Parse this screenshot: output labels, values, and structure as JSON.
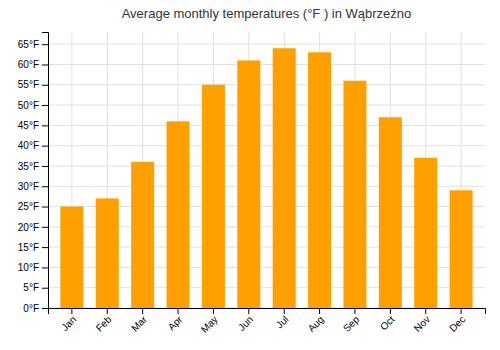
{
  "chart_data": {
    "type": "bar",
    "title": "Average monthly temperatures (°F ) in Wąbrzeźno",
    "categories": [
      "Jan",
      "Feb",
      "Mar",
      "Apr",
      "May",
      "Jun",
      "Jul",
      "Aug",
      "Sep",
      "Oct",
      "Nov",
      "Dec"
    ],
    "values": [
      25,
      27,
      36,
      46,
      55,
      61,
      64,
      63,
      56,
      47,
      37,
      29
    ],
    "color": "#FFA000",
    "ylim": [
      0,
      68
    ],
    "yticks": [
      {
        "value": 0,
        "label": "0°F"
      },
      {
        "value": 5,
        "label": "5°F"
      },
      {
        "value": 10,
        "label": "10°F"
      },
      {
        "value": 15,
        "label": "15°F"
      },
      {
        "value": 20,
        "label": "20°F"
      },
      {
        "value": 25,
        "label": "25°F"
      },
      {
        "value": 30,
        "label": "30°F"
      },
      {
        "value": 35,
        "label": "35°F"
      },
      {
        "value": 40,
        "label": "40°F"
      },
      {
        "value": 45,
        "label": "45°F"
      },
      {
        "value": 50,
        "label": "50°F"
      },
      {
        "value": 55,
        "label": "55°F"
      },
      {
        "value": 60,
        "label": "60°F"
      },
      {
        "value": 65,
        "label": "65°F"
      }
    ],
    "grid": true
  }
}
